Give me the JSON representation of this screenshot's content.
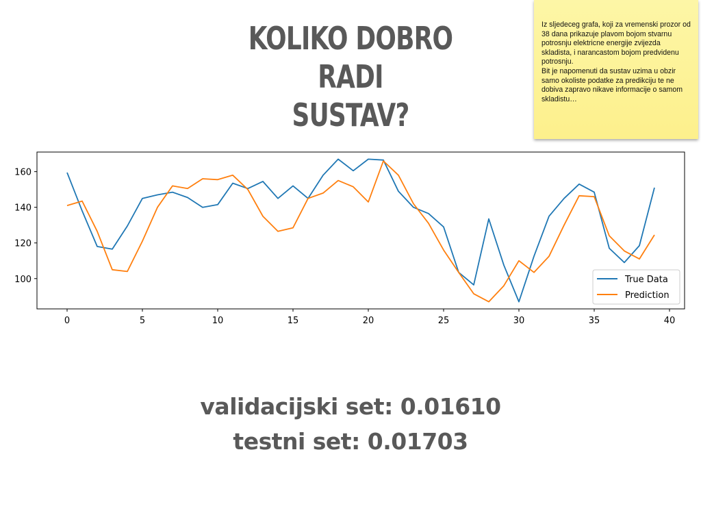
{
  "slide": {
    "title_lines": [
      "KOLIKO DOBRO RADI",
      "SUSTAV?"
    ],
    "note": "Iz sljedeceg grafa, koji za vremenski prozor od 38 dana prikazuje plavom bojom stvarnu potrosnju elektricne energije zvijezda skladista, i narancastom bojom predvidenu potrosnju.\nBit je napomenuti da sustav uzima u obzir samo okoliste podatke za predikciju te ne dobiva zapravo nikave informacije o samom skladistu…",
    "metrics": {
      "validation": "validacijski set:  0.01610",
      "test": "testni set:  0.01703"
    }
  },
  "colors": {
    "true_data": "#1f77b4",
    "prediction": "#ff7f0e",
    "title_text": "#595959",
    "note_bg": "#fdf39a"
  },
  "chart_data": {
    "type": "line",
    "title": "",
    "xlabel": "",
    "ylabel": "",
    "xlim": [
      -2,
      41
    ],
    "ylim": [
      83,
      171
    ],
    "xticks": [
      0,
      5,
      10,
      15,
      20,
      25,
      30,
      35,
      40
    ],
    "yticks": [
      100,
      120,
      140,
      160
    ],
    "grid": false,
    "legend": "lower-right",
    "x": [
      0,
      1,
      2,
      3,
      4,
      5,
      6,
      7,
      8,
      9,
      10,
      11,
      12,
      13,
      14,
      15,
      16,
      17,
      18,
      19,
      20,
      21,
      22,
      23,
      24,
      25,
      26,
      27,
      28,
      29,
      30,
      31,
      32,
      33,
      34,
      35,
      36,
      37,
      38,
      39
    ],
    "series": [
      {
        "name": "True Data",
        "color": "#1f77b4",
        "values": [
          159.5,
          138,
          118,
          116.5,
          129.5,
          145,
          147,
          148.5,
          145.5,
          140,
          141.5,
          153.5,
          150.5,
          154.5,
          145,
          152,
          145,
          158,
          167,
          160.5,
          167,
          166.5,
          149,
          140,
          136.5,
          129,
          103.5,
          96.5,
          133.5,
          107.5,
          87,
          112.5,
          135,
          145,
          153,
          148.5,
          117,
          109,
          118.5,
          151
        ]
      },
      {
        "name": "Prediction",
        "color": "#ff7f0e",
        "values": [
          141,
          143.5,
          126.5,
          105,
          104,
          121,
          140,
          152,
          150.5,
          156,
          155.5,
          158,
          150,
          135,
          126.5,
          128.5,
          145,
          148,
          155,
          151.5,
          143,
          166,
          158,
          142,
          131,
          116,
          103.5,
          91.5,
          87,
          96,
          110,
          103.5,
          112.5,
          130,
          146.5,
          146,
          124,
          115.5,
          111,
          124.5
        ]
      }
    ]
  }
}
